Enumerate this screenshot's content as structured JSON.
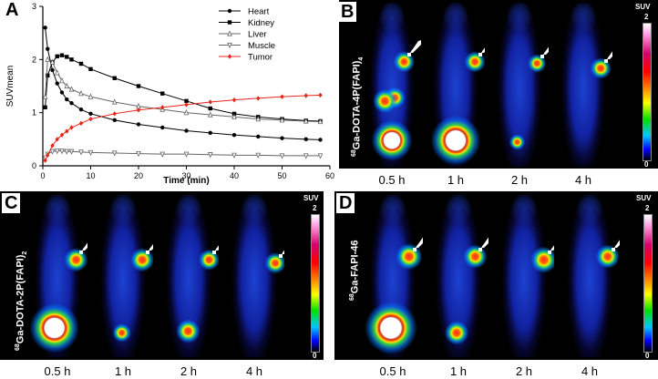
{
  "panels": {
    "a_label": "A",
    "b_label": "B",
    "c_label": "C",
    "d_label": "D"
  },
  "tracers": {
    "b": {
      "iso": "68",
      "name": "Ga-DOTA-4P(FAPI)",
      "sub": "4"
    },
    "c": {
      "iso": "68",
      "name": "Ga-DOTA-2P(FAPI)",
      "sub": "2"
    },
    "d": {
      "iso": "68",
      "name": "Ga-FAPI-46",
      "sub": ""
    }
  },
  "time_points": [
    "0.5 h",
    "1 h",
    "2 h",
    "4 h"
  ],
  "colorbar": {
    "title": "SUV",
    "max": "2",
    "min": "0"
  },
  "colors": {
    "heart": "#000000",
    "kidney": "#000000",
    "liver": "#666666",
    "muscle": "#666666",
    "tumor": "#e8251b"
  },
  "chart_data": {
    "type": "line",
    "xlabel": "Time (min)",
    "ylabel": "SUVmean",
    "xlim": [
      0,
      60
    ],
    "ylim": [
      0,
      3
    ],
    "xticks": [
      0,
      10,
      20,
      30,
      40,
      50,
      60
    ],
    "yticks": [
      0,
      1,
      2,
      3
    ],
    "legend_position": "top-right",
    "series": [
      {
        "name": "Heart",
        "marker": "circle-filled",
        "x": [
          0.5,
          1,
          2,
          3,
          4,
          5,
          6,
          8,
          10,
          15,
          20,
          25,
          30,
          35,
          40,
          45,
          50,
          55,
          58
        ],
        "y": [
          2.6,
          2.2,
          1.8,
          1.55,
          1.38,
          1.25,
          1.18,
          1.06,
          0.98,
          0.86,
          0.78,
          0.72,
          0.66,
          0.62,
          0.58,
          0.55,
          0.52,
          0.5,
          0.49
        ]
      },
      {
        "name": "Kidney",
        "marker": "square-filled",
        "x": [
          0.5,
          1,
          2,
          3,
          4,
          5,
          6,
          8,
          10,
          15,
          20,
          25,
          30,
          35,
          40,
          45,
          50,
          55,
          58
        ],
        "y": [
          1.1,
          1.7,
          1.95,
          2.06,
          2.08,
          2.05,
          2.0,
          1.92,
          1.82,
          1.65,
          1.5,
          1.36,
          1.22,
          1.08,
          0.98,
          0.92,
          0.88,
          0.85,
          0.84
        ]
      },
      {
        "name": "Liver",
        "marker": "triangle-open",
        "x": [
          0.5,
          1,
          2,
          3,
          4,
          5,
          6,
          8,
          10,
          15,
          20,
          25,
          30,
          35,
          40,
          45,
          50,
          55,
          58
        ],
        "y": [
          1.3,
          2.0,
          1.95,
          1.75,
          1.6,
          1.5,
          1.44,
          1.36,
          1.3,
          1.2,
          1.12,
          1.06,
          1.0,
          0.96,
          0.92,
          0.88,
          0.86,
          0.84,
          0.83
        ]
      },
      {
        "name": "Muscle",
        "marker": "triangle-down-open",
        "x": [
          0.5,
          1,
          2,
          3,
          4,
          5,
          6,
          8,
          10,
          15,
          20,
          25,
          30,
          35,
          40,
          45,
          50,
          55,
          58
        ],
        "y": [
          0.15,
          0.22,
          0.27,
          0.28,
          0.28,
          0.27,
          0.27,
          0.26,
          0.25,
          0.24,
          0.23,
          0.22,
          0.22,
          0.21,
          0.2,
          0.2,
          0.19,
          0.19,
          0.19
        ]
      },
      {
        "name": "Tumor",
        "marker": "diamond-filled",
        "x": [
          0.5,
          1,
          2,
          3,
          4,
          5,
          6,
          8,
          10,
          15,
          20,
          25,
          30,
          35,
          40,
          45,
          50,
          55,
          58
        ],
        "y": [
          0.1,
          0.2,
          0.38,
          0.5,
          0.58,
          0.65,
          0.72,
          0.8,
          0.88,
          0.98,
          1.05,
          1.1,
          1.15,
          1.2,
          1.24,
          1.27,
          1.3,
          1.32,
          1.33
        ]
      }
    ]
  }
}
